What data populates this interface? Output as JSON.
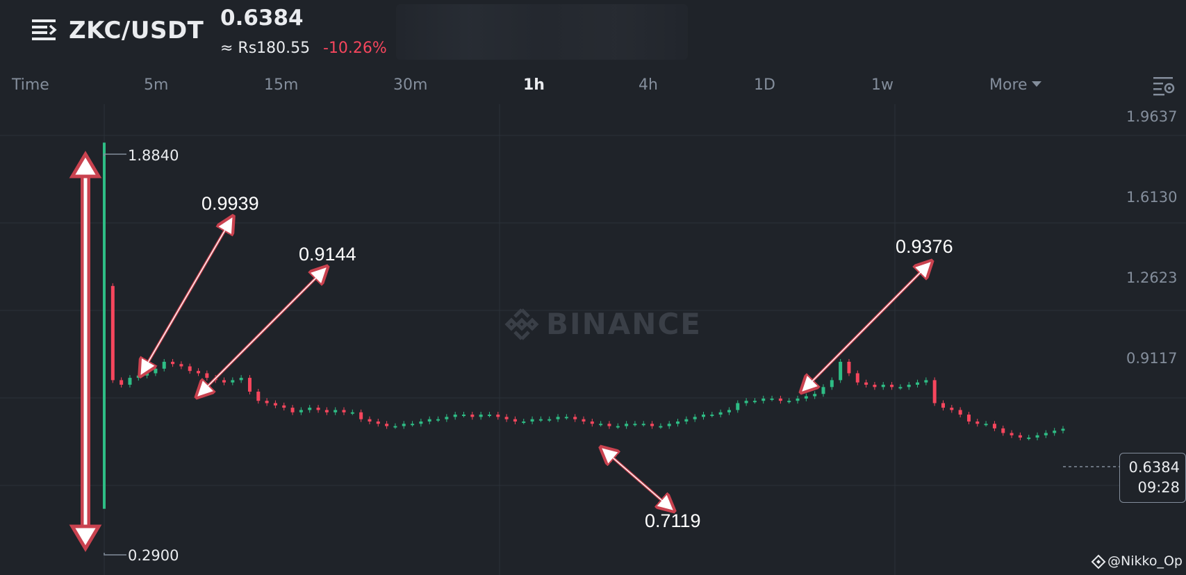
{
  "header": {
    "pair": "ZKC/USDT",
    "price": "0.6384",
    "fiat_price": "≈ Rs180.55",
    "change": "-10.26%"
  },
  "tabs": [
    {
      "label": "Time",
      "active": false
    },
    {
      "label": "5m",
      "active": false
    },
    {
      "label": "15m",
      "active": false
    },
    {
      "label": "30m",
      "active": false
    },
    {
      "label": "1h",
      "active": true
    },
    {
      "label": "4h",
      "active": false
    },
    {
      "label": "1D",
      "active": false
    },
    {
      "label": "1w",
      "active": false
    },
    {
      "label": "More",
      "active": false
    }
  ],
  "chart": {
    "y_axis_labels": [
      "1.9637",
      "1.6130",
      "1.2623",
      "0.9117"
    ],
    "watermark": "BINANCE",
    "high_label": "1.8840",
    "low_label": "0.2900",
    "annotations": [
      "0.9939",
      "0.9144",
      "0.7119",
      "0.9376"
    ],
    "last_price": "0.6384",
    "countdown": "09:28",
    "credit": "@Nikko_Op"
  },
  "colors": {
    "background": "#1f2329",
    "up": "#2ebd85",
    "down": "#f6465d",
    "annotation_arrow": "#c9424f"
  },
  "chart_data": {
    "type": "candlestick",
    "interval": "1h",
    "y_axis_ticks": [
      1.9637,
      1.613,
      1.2623,
      0.9117
    ],
    "high": 1.884,
    "low": 0.29,
    "last": 0.6384,
    "close_series": [
      1.26,
      0.85,
      0.83,
      0.86,
      0.87,
      0.88,
      0.9,
      0.93,
      0.92,
      0.91,
      0.89,
      0.88,
      0.86,
      0.85,
      0.84,
      0.85,
      0.86,
      0.8,
      0.76,
      0.75,
      0.74,
      0.73,
      0.71,
      0.72,
      0.73,
      0.72,
      0.71,
      0.72,
      0.71,
      0.71,
      0.68,
      0.67,
      0.66,
      0.65,
      0.65,
      0.66,
      0.66,
      0.67,
      0.68,
      0.68,
      0.69,
      0.7,
      0.7,
      0.69,
      0.7,
      0.7,
      0.69,
      0.68,
      0.67,
      0.67,
      0.68,
      0.68,
      0.68,
      0.69,
      0.69,
      0.68,
      0.67,
      0.66,
      0.66,
      0.65,
      0.65,
      0.66,
      0.66,
      0.66,
      0.65,
      0.65,
      0.66,
      0.67,
      0.68,
      0.69,
      0.7,
      0.7,
      0.71,
      0.72,
      0.75,
      0.76,
      0.76,
      0.77,
      0.77,
      0.76,
      0.76,
      0.77,
      0.78,
      0.79,
      0.82,
      0.85,
      0.93,
      0.88,
      0.84,
      0.83,
      0.82,
      0.83,
      0.82,
      0.82,
      0.83,
      0.84,
      0.85,
      0.75,
      0.73,
      0.72,
      0.7,
      0.67,
      0.66,
      0.66,
      0.64,
      0.62,
      0.61,
      0.6,
      0.6,
      0.61,
      0.62,
      0.63,
      0.6384
    ]
  }
}
